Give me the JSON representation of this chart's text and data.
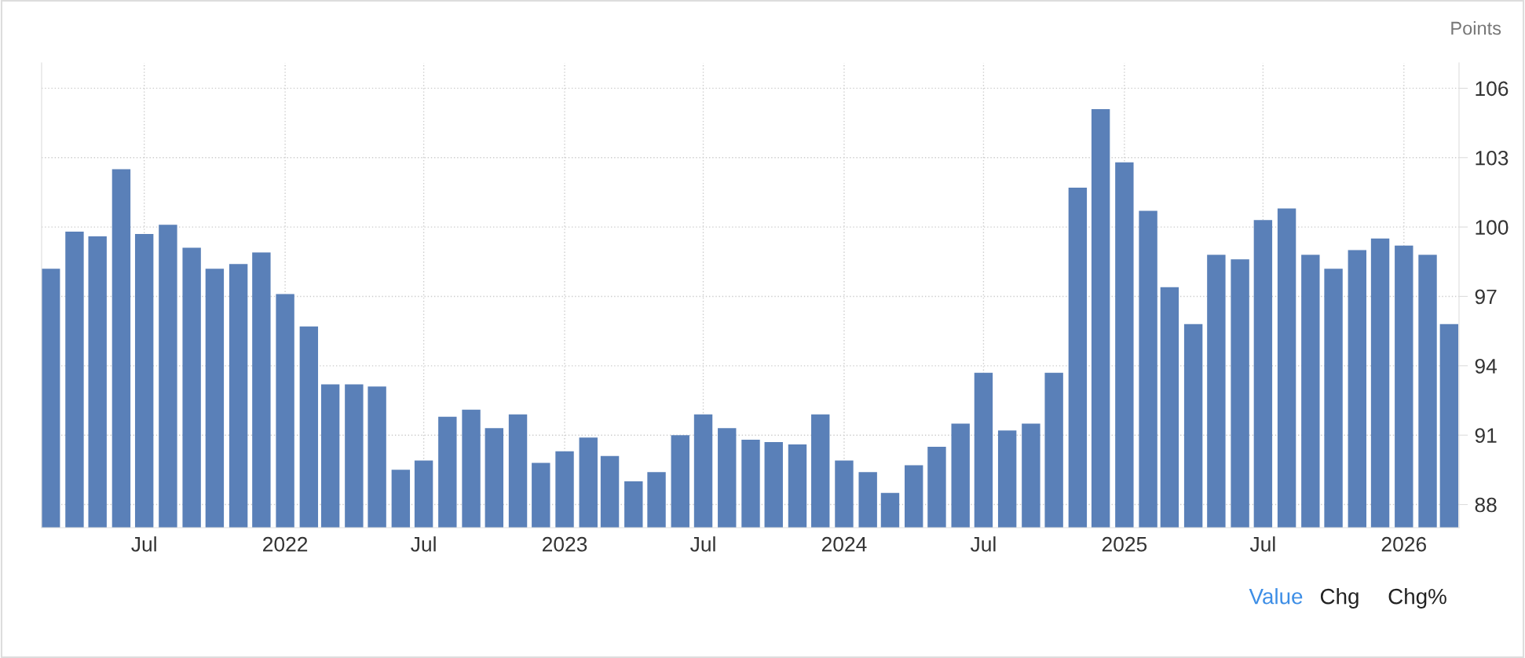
{
  "chart_data": {
    "type": "bar",
    "ylabel": "Points",
    "x": [
      "2021-03",
      "2021-04",
      "2021-05",
      "2021-06",
      "2021-07",
      "2021-08",
      "2021-09",
      "2021-10",
      "2021-11",
      "2021-12",
      "2022-01",
      "2022-02",
      "2022-03",
      "2022-04",
      "2022-05",
      "2022-06",
      "2022-07",
      "2022-08",
      "2022-09",
      "2022-10",
      "2022-11",
      "2022-12",
      "2023-01",
      "2023-02",
      "2023-03",
      "2023-04",
      "2023-05",
      "2023-06",
      "2023-07",
      "2023-08",
      "2023-09",
      "2023-10",
      "2023-11",
      "2023-12",
      "2024-01",
      "2024-02",
      "2024-03",
      "2024-04",
      "2024-05",
      "2024-06",
      "2024-07",
      "2024-08",
      "2024-09",
      "2024-10",
      "2024-11",
      "2024-12",
      "2025-01",
      "2025-02",
      "2025-03",
      "2025-04",
      "2025-05",
      "2025-06",
      "2025-07",
      "2025-08",
      "2025-09",
      "2025-10",
      "2025-11",
      "2025-12",
      "2026-01",
      "2026-02",
      "2026-03"
    ],
    "values": [
      98.2,
      99.8,
      99.6,
      102.5,
      99.7,
      100.1,
      99.1,
      98.2,
      98.4,
      98.9,
      97.1,
      95.7,
      93.2,
      93.2,
      93.1,
      89.5,
      89.9,
      91.8,
      92.1,
      91.3,
      91.9,
      89.8,
      90.3,
      90.9,
      90.1,
      89.0,
      89.4,
      91.0,
      91.9,
      91.3,
      90.8,
      90.7,
      90.6,
      91.9,
      89.9,
      89.4,
      88.5,
      89.7,
      90.5,
      91.5,
      93.7,
      91.2,
      91.5,
      93.7,
      101.7,
      105.1,
      102.8,
      100.7,
      97.4,
      95.8,
      98.8,
      98.6,
      100.3,
      100.8,
      98.8,
      98.2,
      99.0,
      99.5,
      99.2,
      98.8,
      95.8
    ],
    "color": "#5a80b8",
    "xlim": [
      "2021-02-17",
      "2026-03-14"
    ],
    "xticks": [
      {
        "value": "2021-07",
        "label": "Jul"
      },
      {
        "value": "2022-01",
        "label": "2022"
      },
      {
        "value": "2022-07",
        "label": "Jul"
      },
      {
        "value": "2023-01",
        "label": "2023"
      },
      {
        "value": "2023-07",
        "label": "Jul"
      },
      {
        "value": "2024-01",
        "label": "2024"
      },
      {
        "value": "2024-07",
        "label": "Jul"
      },
      {
        "value": "2025-01",
        "label": "2025"
      },
      {
        "value": "2025-07",
        "label": "Jul"
      },
      {
        "value": "2026-01",
        "label": "2026"
      }
    ],
    "ylim": [
      87,
      107.1
    ],
    "yticks": [
      88,
      91,
      94,
      97,
      100,
      103,
      106
    ],
    "grid": true,
    "annotations": [
      "Value",
      "Chg",
      "Chg%"
    ]
  }
}
